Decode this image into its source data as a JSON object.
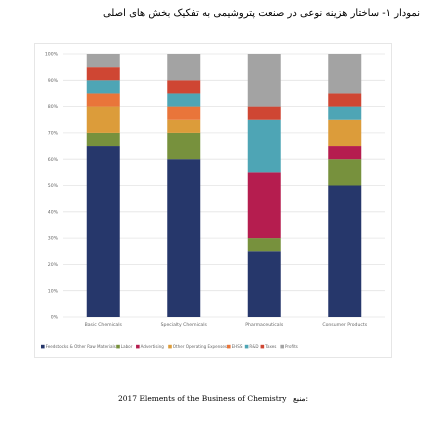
{
  "title": "نمودار ۱- ساختار هزینه نوعی در صنعت پتروشیمی به تفکیک بخش های اصلی",
  "source": {
    "label": "منبع:",
    "text": "2017 Elements of the Business of Chemistry"
  },
  "chart_data": {
    "type": "bar",
    "stacked": true,
    "percent": true,
    "categories": [
      "Basic Chemicals",
      "Specialty Chemicals",
      "Pharmaceuticals",
      "Consumer Products"
    ],
    "yticks": [
      "0%",
      "10%",
      "20%",
      "30%",
      "40%",
      "50%",
      "60%",
      "70%",
      "80%",
      "90%",
      "100%"
    ],
    "ylim": [
      0,
      100
    ],
    "grid": true,
    "legend_position": "bottom",
    "series": [
      {
        "name": "Feedstocks & Other Raw Materials",
        "color": "#26376b",
        "values": [
          65,
          60,
          25,
          50
        ]
      },
      {
        "name": "Labor",
        "color": "#77913d",
        "values": [
          5,
          10,
          5,
          10
        ]
      },
      {
        "name": "Advertising",
        "color": "#b51d4f",
        "values": [
          0,
          0,
          25,
          5
        ]
      },
      {
        "name": "Other Operating Expenses",
        "color": "#dc9c3a",
        "values": [
          10,
          5,
          0,
          10
        ]
      },
      {
        "name": "EHSS",
        "color": "#e9753a",
        "values": [
          5,
          5,
          0,
          0
        ]
      },
      {
        "name": "R&D",
        "color": "#4ea5b5",
        "values": [
          5,
          5,
          20,
          5
        ]
      },
      {
        "name": "Taxes",
        "color": "#cf4633",
        "values": [
          5,
          5,
          5,
          5
        ]
      },
      {
        "name": "Profits",
        "color": "#a3a3a3",
        "values": [
          5,
          10,
          20,
          15
        ]
      }
    ]
  }
}
